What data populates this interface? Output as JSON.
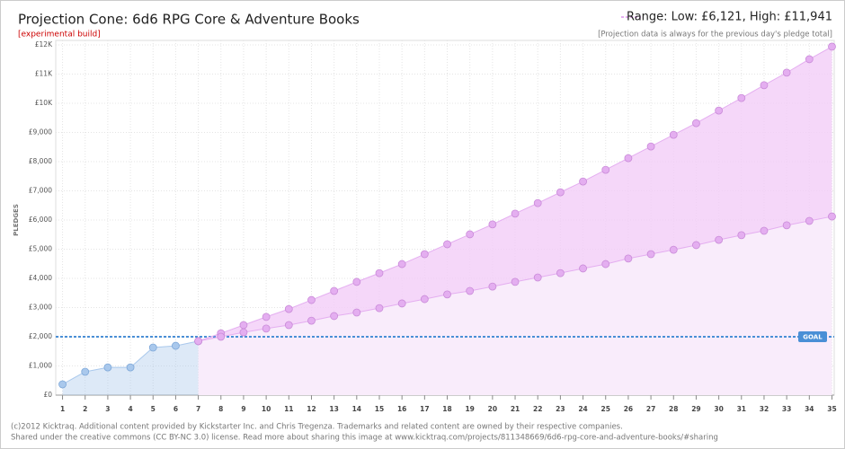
{
  "chart_data": {
    "type": "projection",
    "title": "Projection Cone: 6d6 RPG Core & Adventure Books",
    "subtitle": "[experimental build]",
    "range_text": "Range: Low:  £6,121, High:  £11,941",
    "note": "[Projection data is always for the previous day's pledge total]",
    "y_label": "PLEDGES",
    "footer": [
      "(c)2012 Kicktraq. Additional content provided by Kickstarter Inc. and Chris Tregenza. Trademarks and related content are owned by their respective companies.",
      "Shared under the creative commons (CC BY-NC 3.0) license. Read more about sharing this image at www.kicktraq.com/projects/811348669/6d6-rpg-core-and-adventure-books/#sharing"
    ],
    "goal": 2000,
    "goal_label": "GOAL",
    "goal_color": "#4a8fd6",
    "x": [
      1,
      2,
      3,
      4,
      5,
      6,
      7,
      8,
      9,
      10,
      11,
      12,
      13,
      14,
      15,
      16,
      17,
      18,
      19,
      20,
      21,
      22,
      23,
      24,
      25,
      26,
      27,
      28,
      29,
      30,
      31,
      32,
      33,
      34,
      35
    ],
    "xlim": [
      0.7,
      35.1
    ],
    "xticks": [
      1,
      2,
      3,
      4,
      5,
      6,
      7,
      8,
      9,
      10,
      11,
      12,
      13,
      14,
      15,
      16,
      17,
      18,
      19,
      20,
      21,
      22,
      23,
      24,
      25,
      26,
      27,
      28,
      29,
      30,
      31,
      32,
      33,
      34,
      35
    ],
    "ylim": [
      0,
      12000
    ],
    "yticks": [
      {
        "value": 0,
        "label": "£0"
      },
      {
        "value": 1000,
        "label": "£1,000"
      },
      {
        "value": 2000,
        "label": "£2,000"
      },
      {
        "value": 3000,
        "label": "£3,000"
      },
      {
        "value": 4000,
        "label": "£4,000"
      },
      {
        "value": 5000,
        "label": "£5,000"
      },
      {
        "value": 6000,
        "label": "£6,000"
      },
      {
        "value": 7000,
        "label": "£7,000"
      },
      {
        "value": 8000,
        "label": "£8,000"
      },
      {
        "value": 9000,
        "label": "£9,000"
      },
      {
        "value": 10000,
        "label": "£10K"
      },
      {
        "value": 11000,
        "label": "£11K"
      },
      {
        "value": 12000,
        "label": "£12K"
      }
    ],
    "grid": true,
    "series": [
      {
        "color": "#a9c8ec",
        "values": [
          370,
          800,
          950,
          950,
          1630,
          1690,
          1850,
          null,
          null,
          null,
          null,
          null,
          null,
          null,
          null,
          null,
          null,
          null,
          null,
          null,
          null,
          null,
          null,
          null,
          null,
          null,
          null,
          null,
          null,
          null,
          null,
          null,
          null,
          null,
          null
        ]
      },
      {
        "color": "#e4aef0",
        "values": [
          null,
          null,
          null,
          null,
          null,
          null,
          1850,
          2120,
          2400,
          2680,
          2950,
          3260,
          3570,
          3880,
          4180,
          4490,
          4830,
          5170,
          5510,
          5850,
          6220,
          6580,
          6950,
          7320,
          7720,
          8120,
          8520,
          8920,
          9320,
          9750,
          10180,
          10620,
          11050,
          11510,
          11941
        ]
      },
      {
        "color": "#e4aef0",
        "values": [
          null,
          null,
          null,
          null,
          null,
          null,
          1850,
          2000,
          2150,
          2280,
          2400,
          2550,
          2710,
          2830,
          2980,
          3140,
          3290,
          3450,
          3570,
          3720,
          3880,
          4030,
          4180,
          4340,
          4490,
          4680,
          4830,
          4980,
          5140,
          5320,
          5480,
          5630,
          5820,
          5970,
          6121
        ]
      }
    ]
  }
}
